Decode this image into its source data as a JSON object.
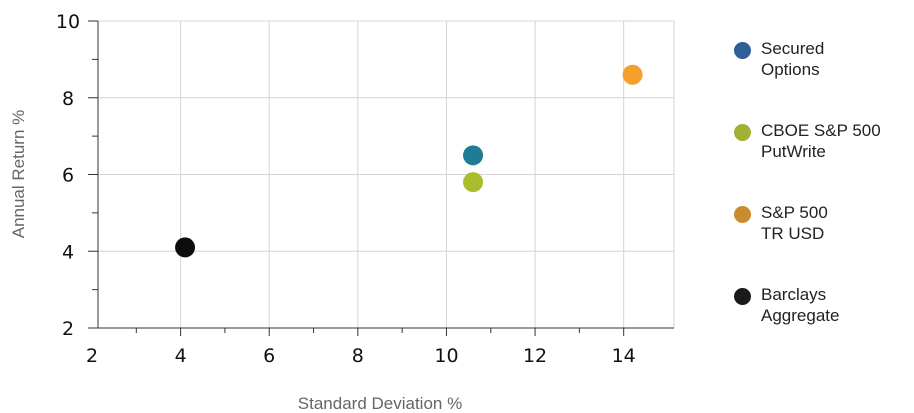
{
  "chart_data": {
    "type": "scatter",
    "xlabel": "Standard Deviation %",
    "ylabel": "Annual Return %",
    "xlim": [
      2,
      15
    ],
    "ylim": [
      2,
      10
    ],
    "x_ticks": [
      "2",
      "4",
      "6",
      "8",
      "10",
      "12",
      "14"
    ],
    "y_ticks": [
      "2",
      "4",
      "6",
      "8",
      "10"
    ],
    "grid": true,
    "legend_position": "right",
    "series": [
      {
        "name": "Secured\nOptions",
        "color": "#2e5f97",
        "point_color": "#1f7c95",
        "x": 10.6,
        "y": 6.5
      },
      {
        "name": "CBOE S&P 500\nPutWrite",
        "color": "#a2b034",
        "point_color": "#a9bc2d",
        "x": 10.6,
        "y": 5.8
      },
      {
        "name": "S&P 500\nTR USD",
        "color": "#cc8a2e",
        "point_color": "#f5a02b",
        "x": 14.2,
        "y": 8.6
      },
      {
        "name": "Barclays\nAggregate",
        "color": "#1a1a1a",
        "point_color": "#0d0d0d",
        "x": 4.1,
        "y": 4.1
      }
    ]
  }
}
